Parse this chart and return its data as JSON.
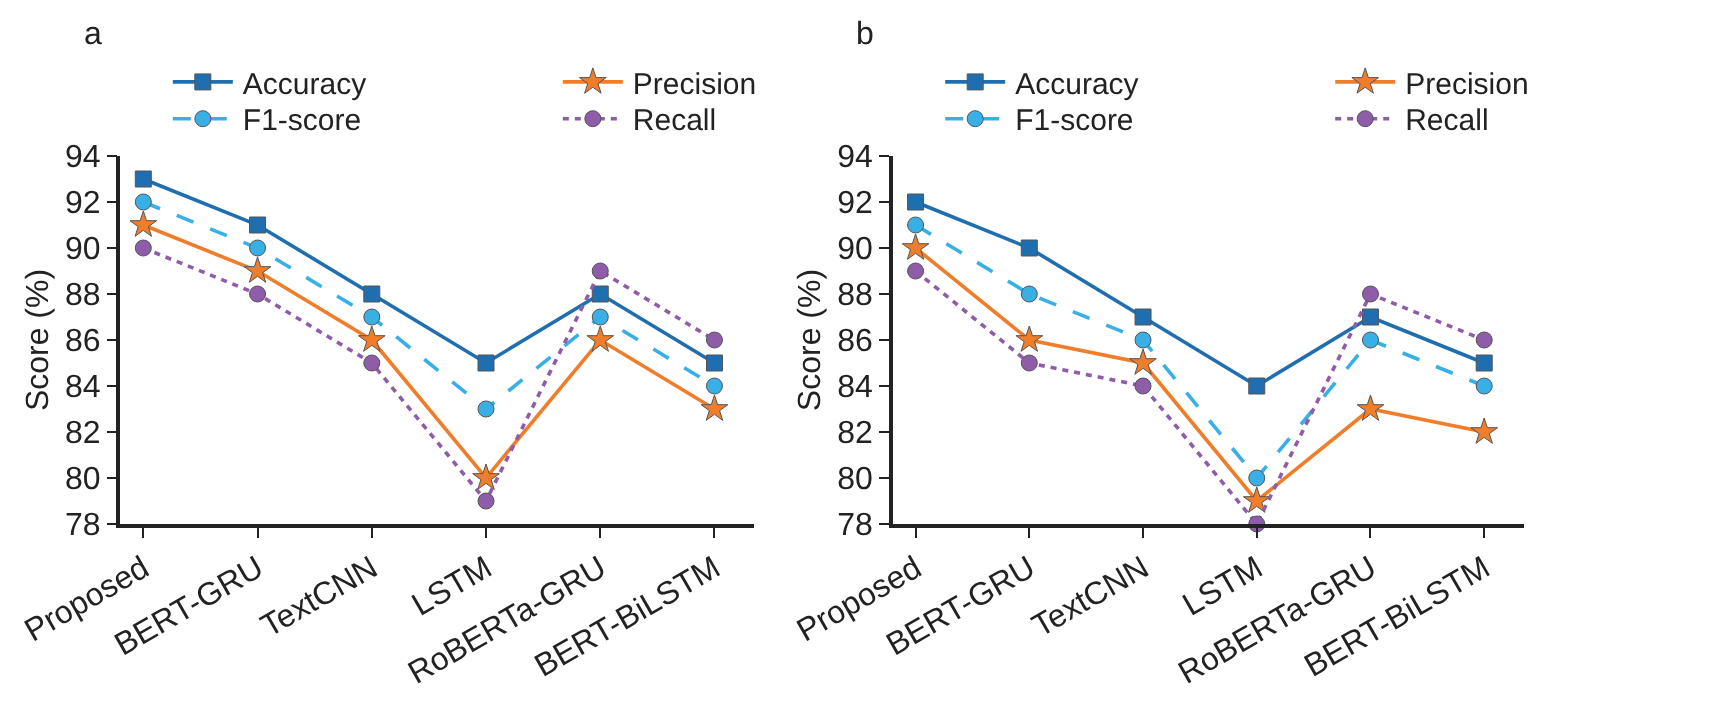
{
  "chart_data": [
    {
      "type": "line",
      "title": "a",
      "ylabel": "Score (%)",
      "categories": [
        "Proposed",
        "BERT-GRU",
        "TextCNN",
        "LSTM",
        "RoBERTa-GRU",
        "BERT-BiLSTM"
      ],
      "ylim": [
        78,
        94
      ],
      "yticks": [
        78,
        80,
        82,
        84,
        86,
        88,
        90,
        92,
        94
      ],
      "grid": false,
      "legend": "top",
      "series": [
        {
          "name": "Accuracy",
          "color": "#1f6fb0",
          "marker": "square",
          "line_style": "solid",
          "values": [
            93,
            91,
            88,
            85,
            88,
            85
          ]
        },
        {
          "name": "F1-score",
          "color": "#38b0e6",
          "marker": "circle",
          "line_style": "dashed",
          "values": [
            92,
            90,
            87,
            83,
            87,
            84
          ]
        },
        {
          "name": "Precision",
          "color": "#f07d2a",
          "marker": "star",
          "line_style": "solid",
          "values": [
            91,
            89,
            86,
            80,
            86,
            83
          ]
        },
        {
          "name": "Recall",
          "color": "#8e5ca8",
          "marker": "circle",
          "line_style": "dotted",
          "values": [
            90,
            88,
            85,
            79,
            89,
            86
          ]
        }
      ]
    },
    {
      "type": "line",
      "title": "b",
      "ylabel": "Score (%)",
      "categories": [
        "Proposed",
        "BERT-GRU",
        "TextCNN",
        "LSTM",
        "RoBERTa-GRU",
        "BERT-BiLSTM"
      ],
      "ylim": [
        78,
        94
      ],
      "yticks": [
        78,
        80,
        82,
        84,
        86,
        88,
        90,
        92,
        94
      ],
      "grid": false,
      "legend": "top",
      "series": [
        {
          "name": "Accuracy",
          "color": "#1f6fb0",
          "marker": "square",
          "line_style": "solid",
          "values": [
            92,
            90,
            87,
            84,
            87,
            85
          ]
        },
        {
          "name": "F1-score",
          "color": "#38b0e6",
          "marker": "circle",
          "line_style": "dashed",
          "values": [
            91,
            88,
            86,
            80,
            86,
            84
          ]
        },
        {
          "name": "Precision",
          "color": "#f07d2a",
          "marker": "star",
          "line_style": "solid",
          "values": [
            90,
            86,
            85,
            79,
            83,
            82
          ]
        },
        {
          "name": "Recall",
          "color": "#8e5ca8",
          "marker": "circle",
          "line_style": "dotted",
          "values": [
            89,
            85,
            84,
            78,
            88,
            86
          ]
        }
      ]
    }
  ]
}
